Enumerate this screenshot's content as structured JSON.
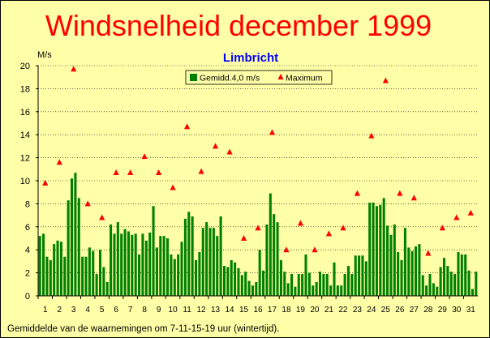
{
  "chart_data": {
    "type": "bar",
    "title": "Windsnelheid december 1999",
    "subtitle": "Limbricht",
    "ylabel": "M/s",
    "ylim": [
      0,
      20
    ],
    "yticks": [
      0,
      2,
      4,
      6,
      8,
      10,
      12,
      14,
      16,
      18,
      20
    ],
    "x_tick_labels": [
      "1",
      "2",
      "3",
      "4",
      "5",
      "6",
      "7",
      "8",
      "9",
      "10",
      "11",
      "12",
      "13",
      "14",
      "15",
      "16",
      "17",
      "18",
      "19",
      "20",
      "21",
      "22",
      "23",
      "24",
      "25",
      "26",
      "27",
      "28",
      "29",
      "30",
      "31"
    ],
    "footnote": "Gemiddelde van de waarnemingen om 7-11-15-19 uur (wintertijd).",
    "legend": {
      "placement": "top-center"
    },
    "colors": {
      "bar": "#008000",
      "maximum": "#FF0000",
      "title": "#FF0000",
      "subtitle": "#0000FF"
    },
    "series": [
      {
        "name": "Gemidd.4,0 m/s",
        "values": [
          5.2,
          5.4,
          3.4,
          3.1,
          4.5,
          4.8,
          4.7,
          3.4,
          8.3,
          10.2,
          10.7,
          8.5,
          3.4,
          3.4,
          4.2,
          3.9,
          1.9,
          4.0,
          2.5,
          1.2,
          6.2,
          5.4,
          6.4,
          5.4,
          5.8,
          5.6,
          5.3,
          5.4,
          3.6,
          5.4,
          4.8,
          5.5,
          7.8,
          4.2,
          5.2,
          5.2,
          5.0,
          3.6,
          3.2,
          3.6,
          4.7,
          6.7,
          7.3,
          6.9,
          3.1,
          3.8,
          5.9,
          6.4,
          5.9,
          5.9,
          5.2,
          6.9,
          2.6,
          2.5,
          3.1,
          2.9,
          2.4,
          1.8,
          2.1,
          1.3,
          0.9,
          1.2,
          4.0,
          2.2,
          6.2,
          8.9,
          7.1,
          6.4,
          3.1,
          2.1,
          1.1,
          1.9,
          0.8,
          1.9,
          1.9,
          3.6,
          2.0,
          0.9,
          1.2,
          2.1,
          1.9,
          1.9,
          0.9,
          2.9,
          0.9,
          0.9,
          1.9,
          2.6,
          1.9,
          3.5,
          3.5,
          3.5,
          3.0,
          8.1,
          8.1,
          7.8,
          7.9,
          8.5,
          6.1,
          5.3,
          6.2,
          3.8,
          3.1,
          5.9,
          4.2,
          3.9,
          4.3,
          4.5,
          1.8,
          0.9,
          1.9,
          1.1,
          0.8,
          2.5,
          3.3,
          2.6,
          2.1,
          1.9,
          3.8,
          3.6,
          3.6,
          2.2,
          0.6,
          2.1
        ]
      },
      {
        "name": "Maximum",
        "values": [
          9.8,
          11.6,
          19.7,
          8.0,
          6.8,
          10.7,
          10.7,
          12.1,
          10.7,
          9.4,
          14.7,
          10.8,
          13.0,
          12.5,
          5.0,
          5.9,
          14.2,
          4.0,
          6.3,
          4.0,
          5.4,
          5.9,
          8.9,
          13.9,
          18.7,
          8.9,
          8.5,
          3.7,
          5.9,
          6.8,
          7.2
        ]
      }
    ]
  }
}
